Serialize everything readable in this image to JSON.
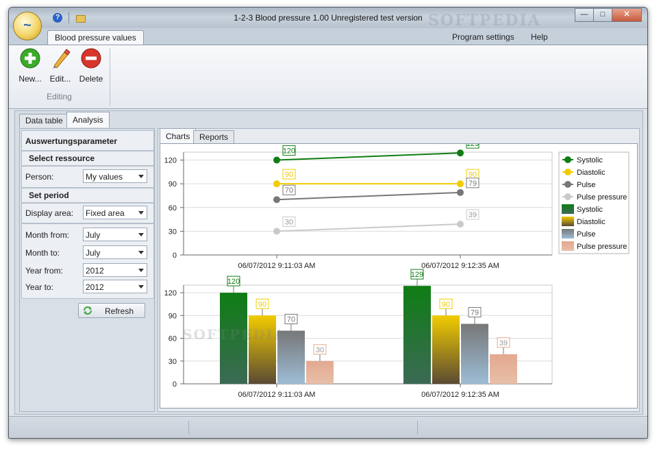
{
  "window": {
    "title": "1-2-3 Blood pressure  1.00 Unregistered test version",
    "watermark": "SOFTPEDIA",
    "help_icon": "help-icon",
    "folder_icon": "folder-icon"
  },
  "ribbon": {
    "tab_active": "Blood pressure values",
    "menu_right": [
      "Program settings",
      "Help"
    ],
    "buttons": [
      {
        "label": "New...",
        "icon": "add-icon"
      },
      {
        "label": "Edit...",
        "icon": "pencil-icon"
      },
      {
        "label": "Delete",
        "icon": "delete-icon"
      }
    ],
    "group_label": "Editing"
  },
  "main_tabs": [
    "Data table",
    "Analysis"
  ],
  "left_panel": {
    "title": "Auswertungsparameter",
    "section_resource": "Select ressource",
    "person_label": "Person:",
    "person_value": "My values",
    "section_period": "Set period",
    "display_area_label": "Display area:",
    "display_area_value": "Fixed area",
    "month_from_label": "Month from:",
    "month_from_value": "July",
    "month_to_label": "Month to:",
    "month_to_value": "July",
    "year_from_label": "Year from:",
    "year_from_value": "2012",
    "year_to_label": "Year to:",
    "year_to_value": "2012",
    "refresh_label": "Refresh"
  },
  "sub_tabs": [
    "Charts",
    "Reports"
  ],
  "chart_data": [
    {
      "type": "line",
      "categories": [
        "06/07/2012 9:11:03 AM",
        "06/07/2012 9:12:35 AM"
      ],
      "series": [
        {
          "name": "Systolic",
          "values": [
            120,
            129
          ],
          "color": "#0f7d14"
        },
        {
          "name": "Diastolic",
          "values": [
            90,
            90
          ],
          "color": "#f2cc00"
        },
        {
          "name": "Pulse",
          "values": [
            70,
            79
          ],
          "color": "#777777"
        },
        {
          "name": "Pulse pressure",
          "values": [
            30,
            39
          ],
          "color": "#c9c9c9"
        }
      ],
      "ylim": [
        0,
        130
      ],
      "yticks": [
        0,
        30,
        60,
        90,
        120
      ],
      "grid": true,
      "legend": "right"
    },
    {
      "type": "bar",
      "categories": [
        "06/07/2012 9:11:03 AM",
        "06/07/2012 9:12:35 AM"
      ],
      "series": [
        {
          "name": "Systolic",
          "values": [
            120,
            129
          ],
          "color": "#0f7d14"
        },
        {
          "name": "Diastolic",
          "values": [
            90,
            90
          ],
          "color": "#f2cc00"
        },
        {
          "name": "Pulse",
          "values": [
            70,
            79
          ],
          "color": "#777777"
        },
        {
          "name": "Pulse pressure",
          "values": [
            30,
            39
          ],
          "color": "#e3a890"
        }
      ],
      "ylim": [
        0,
        130
      ],
      "yticks": [
        0,
        30,
        60,
        90,
        120
      ],
      "grid": true,
      "legend": "right"
    }
  ],
  "legend": [
    {
      "name": "Systolic",
      "kind": "line",
      "color": "#0f7d14"
    },
    {
      "name": "Diastolic",
      "kind": "line",
      "color": "#f2cc00"
    },
    {
      "name": "Pulse",
      "kind": "line",
      "color": "#777777"
    },
    {
      "name": "Pulse pressure",
      "kind": "line",
      "color": "#c9c9c9"
    },
    {
      "name": "Systolic",
      "kind": "bar",
      "color": "#0f7d14"
    },
    {
      "name": "Diastolic",
      "kind": "bar",
      "color": "#f2cc00"
    },
    {
      "name": "Pulse",
      "kind": "bar",
      "color": "#777777"
    },
    {
      "name": "Pulse pressure",
      "kind": "bar",
      "color": "#e3a890"
    }
  ]
}
